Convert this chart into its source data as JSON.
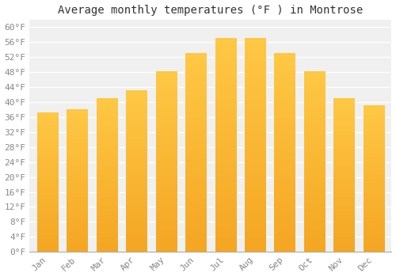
{
  "title": "Average monthly temperatures (°F ) in Montrose",
  "months": [
    "Jan",
    "Feb",
    "Mar",
    "Apr",
    "May",
    "Jun",
    "Jul",
    "Aug",
    "Sep",
    "Oct",
    "Nov",
    "Dec"
  ],
  "values": [
    37,
    38,
    41,
    43,
    48,
    53,
    57,
    57,
    53,
    48,
    41,
    39
  ],
  "bar_color_bottom": "#F5A623",
  "bar_color_top": "#FFC845",
  "ylim": [
    0,
    62
  ],
  "yticks": [
    0,
    4,
    8,
    12,
    16,
    20,
    24,
    28,
    32,
    36,
    40,
    44,
    48,
    52,
    56,
    60
  ],
  "ytick_labels": [
    "0°F",
    "4°F",
    "8°F",
    "12°F",
    "16°F",
    "20°F",
    "24°F",
    "28°F",
    "32°F",
    "36°F",
    "40°F",
    "44°F",
    "48°F",
    "52°F",
    "56°F",
    "60°F"
  ],
  "background_color": "#FFFFFF",
  "plot_bg_color": "#F0F0F0",
  "grid_color": "#FFFFFF",
  "title_fontsize": 10,
  "tick_fontsize": 8,
  "bar_width": 0.7
}
